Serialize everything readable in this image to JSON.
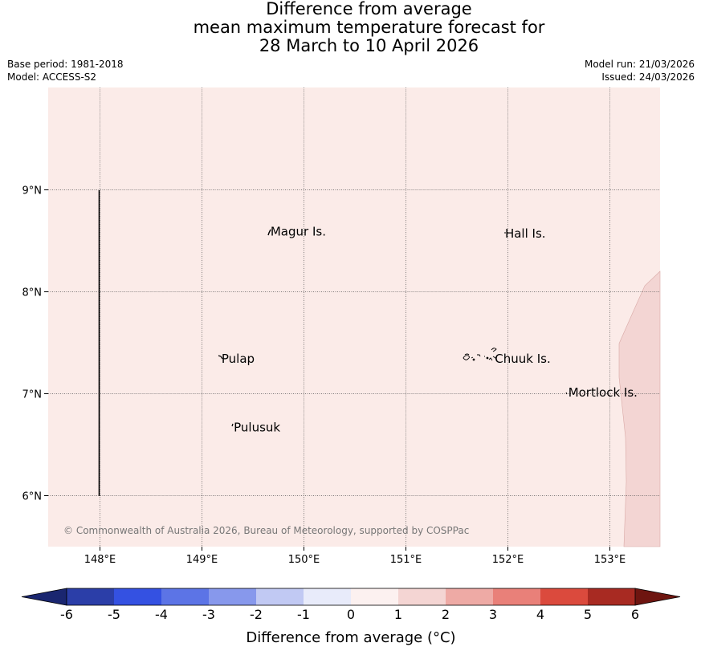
{
  "title": {
    "line1": "Difference from average",
    "line2": "mean maximum temperature forecast for",
    "line3": "28 March to 10 April 2026"
  },
  "meta": {
    "base_period": "Base period: 1981-2018",
    "model": "Model: ACCESS-S2",
    "model_run": "Model run: 21/03/2026",
    "issued": "Issued: 24/03/2026"
  },
  "map": {
    "lat_ticks": [
      "9°N",
      "8°N",
      "7°N",
      "6°N"
    ],
    "lon_ticks": [
      "148°E",
      "149°E",
      "150°E",
      "151°E",
      "152°E",
      "153°E"
    ],
    "lon_range": [
      147.5,
      153.5
    ],
    "lat_range": [
      5.5,
      10.0
    ],
    "places": [
      {
        "name": "Magur Is.",
        "lon": 149.68,
        "lat": 8.55
      },
      {
        "name": "Hall Is.",
        "lon": 151.98,
        "lat": 8.53
      },
      {
        "name": "Pulap",
        "lon": 149.2,
        "lat": 7.3
      },
      {
        "name": "Chuuk Is.",
        "lon": 151.88,
        "lat": 7.3
      },
      {
        "name": "Mortlock Is.",
        "lon": 152.6,
        "lat": 6.97
      },
      {
        "name": "Pulusuk",
        "lon": 149.32,
        "lat": 6.63
      }
    ],
    "fill_colors": {
      "base": "#fbebe8",
      "warm_edge": "#f3d5d3"
    },
    "copyright": "© Commonwealth of Australia 2026, Bureau of Meteorology, supported by COSPPac"
  },
  "colorbar": {
    "ticks": [
      "-6",
      "-5",
      "-4",
      "-3",
      "-2",
      "-1",
      "0",
      "1",
      "2",
      "3",
      "4",
      "5",
      "6"
    ],
    "label": "Difference from average (°C)",
    "colors": [
      "#2b3ea8",
      "#3451e2",
      "#5c74e6",
      "#8798ec",
      "#c1c9f3",
      "#e8ebfa",
      "#fcf1f0",
      "#f4d5d3",
      "#eeaaa5",
      "#e98079",
      "#db4a3d",
      "#a82a22"
    ],
    "extend_low": "#1a2670",
    "extend_high": "#6e1510"
  }
}
